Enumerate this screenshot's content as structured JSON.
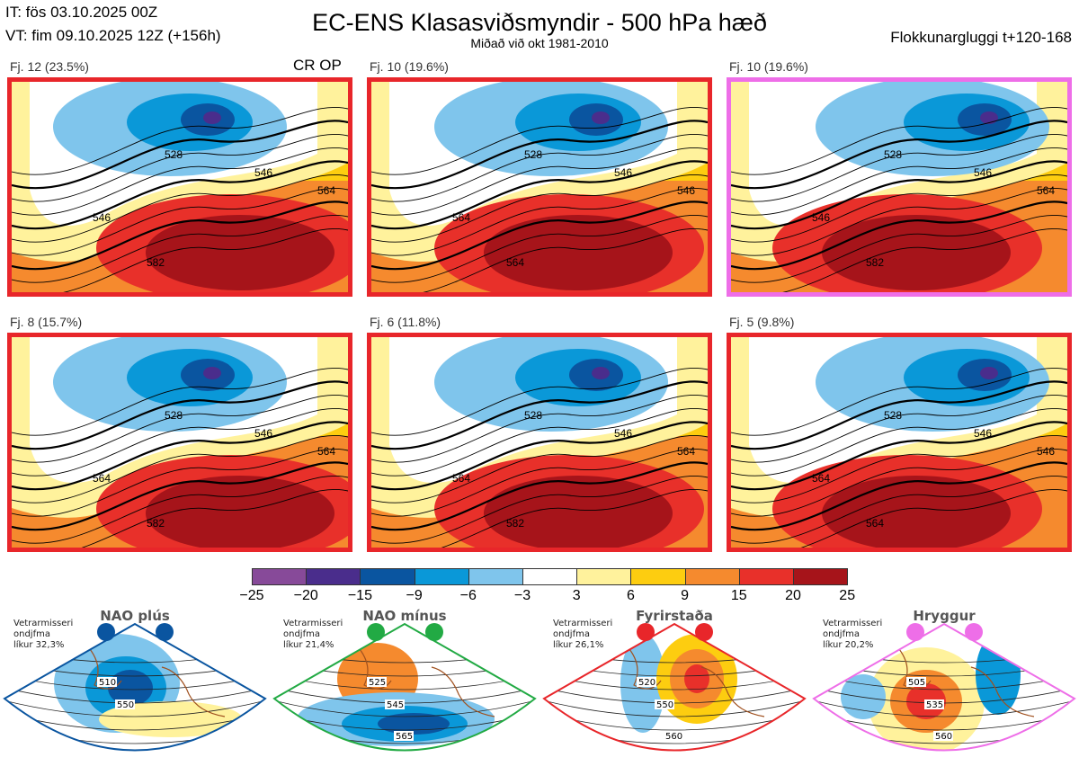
{
  "header": {
    "init_time": "IT: fös 03.10.2025 00Z",
    "valid_time": "VT: fim 09.10.2025 12Z  (+156h)",
    "title": "EC-ENS Klasasviðsmyndir - 500 hPa hæð",
    "subtitle": "Miðað við okt 1981-2010",
    "window": "Flokkunargluggi t+120-168"
  },
  "op_label": "CR OP",
  "panels": [
    {
      "label": "Fj. 12 (23.5%)",
      "border": "#e8262a",
      "contours": [
        "528",
        "546",
        "546",
        "564",
        "582"
      ]
    },
    {
      "label": "Fj. 10 (19.6%)",
      "border": "#e8262a",
      "contours": [
        "528",
        "546",
        "564",
        "546",
        "564"
      ]
    },
    {
      "label": "Fj. 10 (19.6%)",
      "border": "#ee6ee8",
      "contours": [
        "528",
        "546",
        "546",
        "564",
        "582"
      ]
    },
    {
      "label": "Fj. 8 (15.7%)",
      "border": "#e8262a",
      "contours": [
        "528",
        "546",
        "564",
        "564",
        "582"
      ]
    },
    {
      "label": "Fj. 6 (11.8%)",
      "border": "#e8262a",
      "contours": [
        "528",
        "546",
        "564",
        "564",
        "582"
      ]
    },
    {
      "label": "Fj. 5 (9.8%)",
      "border": "#e8262a",
      "contours": [
        "528",
        "546",
        "564",
        "546",
        "564"
      ]
    }
  ],
  "colorbar": {
    "ticks": [
      "−25",
      "−20",
      "−15",
      "−9",
      "−6",
      "−3",
      "3",
      "6",
      "9",
      "15",
      "20",
      "25"
    ],
    "colors": [
      "#874a99",
      "#4a2d8c",
      "#0a55a0",
      "#0a98d8",
      "#7fc5ec",
      "#ffffff",
      "#fff29c",
      "#fdcd10",
      "#f58a2e",
      "#e8302a",
      "#a6141a"
    ]
  },
  "regimes": [
    {
      "title": "NAO plús",
      "season": "Vetrarmisseri",
      "months": "ondjfma",
      "prob": "líkur 32,3%",
      "color": "#0a55a0",
      "contours": [
        "510",
        "550"
      ]
    },
    {
      "title": "NAO mínus",
      "season": "Vetrarmisseri",
      "months": "ondjfma",
      "prob": "líkur 21,4%",
      "color": "#22aa44",
      "contours": [
        "525",
        "545",
        "565"
      ]
    },
    {
      "title": "Fyrirstaða",
      "season": "Vetrarmisseri",
      "months": "ondjfma",
      "prob": "líkur 26,1%",
      "color": "#e8262a",
      "contours": [
        "520",
        "550",
        "560"
      ]
    },
    {
      "title": "Hryggur",
      "season": "Vetrarmisseri",
      "months": "ondjfma",
      "prob": "líkur 20,2%",
      "color": "#ee6ee8",
      "contours": [
        "505",
        "535",
        "560"
      ]
    }
  ]
}
